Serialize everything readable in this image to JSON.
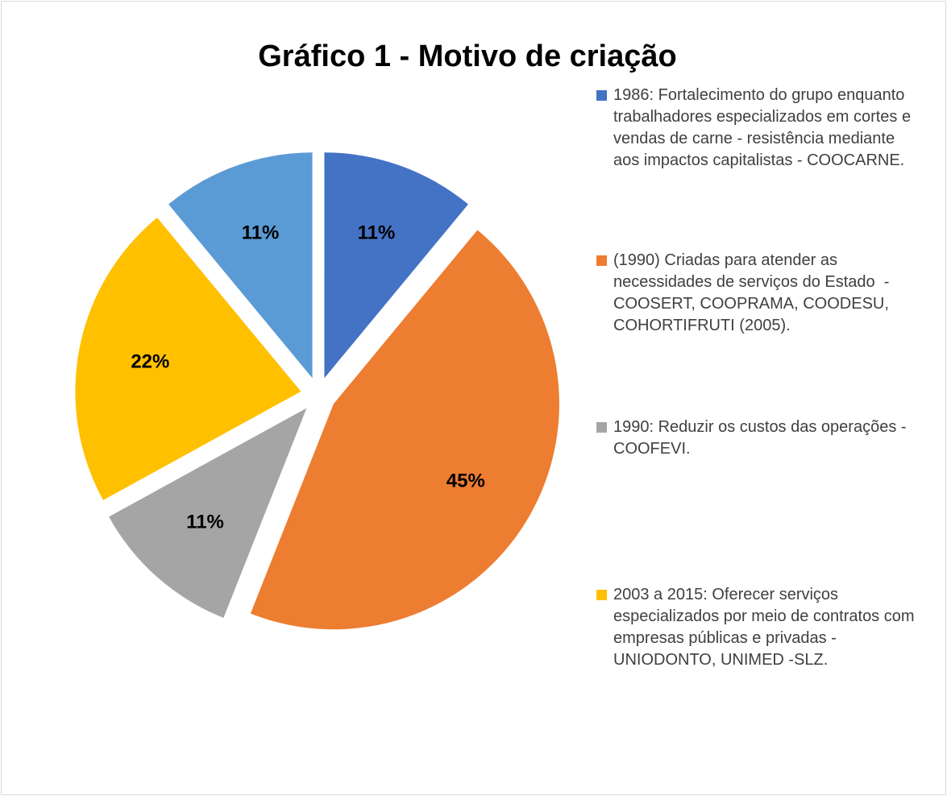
{
  "chart_data": {
    "type": "pie",
    "title": "Gráfico 1 - Motivo de criação",
    "categories": [
      "1986: Fortalecimento do grupo enquanto trabalhadores especializados em cortes e vendas de carne - resistência mediante aos impactos capitalistas - COOCARNE.",
      "(1990) Criadas para atender as necessidades de serviços do Estado  -  COOSERT, COOPRAMA, COODESU, COHORTIFRUTI (2005).",
      "1990: Reduzir os custos das operações - COOFEVI.",
      "2003 a 2015: Oferecer serviços especializados por meio de contratos com empresas públicas e privadas - UNIODONTO, UNIMED -SLZ.",
      null
    ],
    "values": [
      11,
      45,
      11,
      22,
      11
    ],
    "value_labels": [
      "11%",
      "45%",
      "11%",
      "22%",
      "11%"
    ],
    "colors": [
      "#4472c4",
      "#ed7d31",
      "#a5a5a5",
      "#ffc000",
      "#5b9bd5"
    ],
    "legend": "right"
  }
}
